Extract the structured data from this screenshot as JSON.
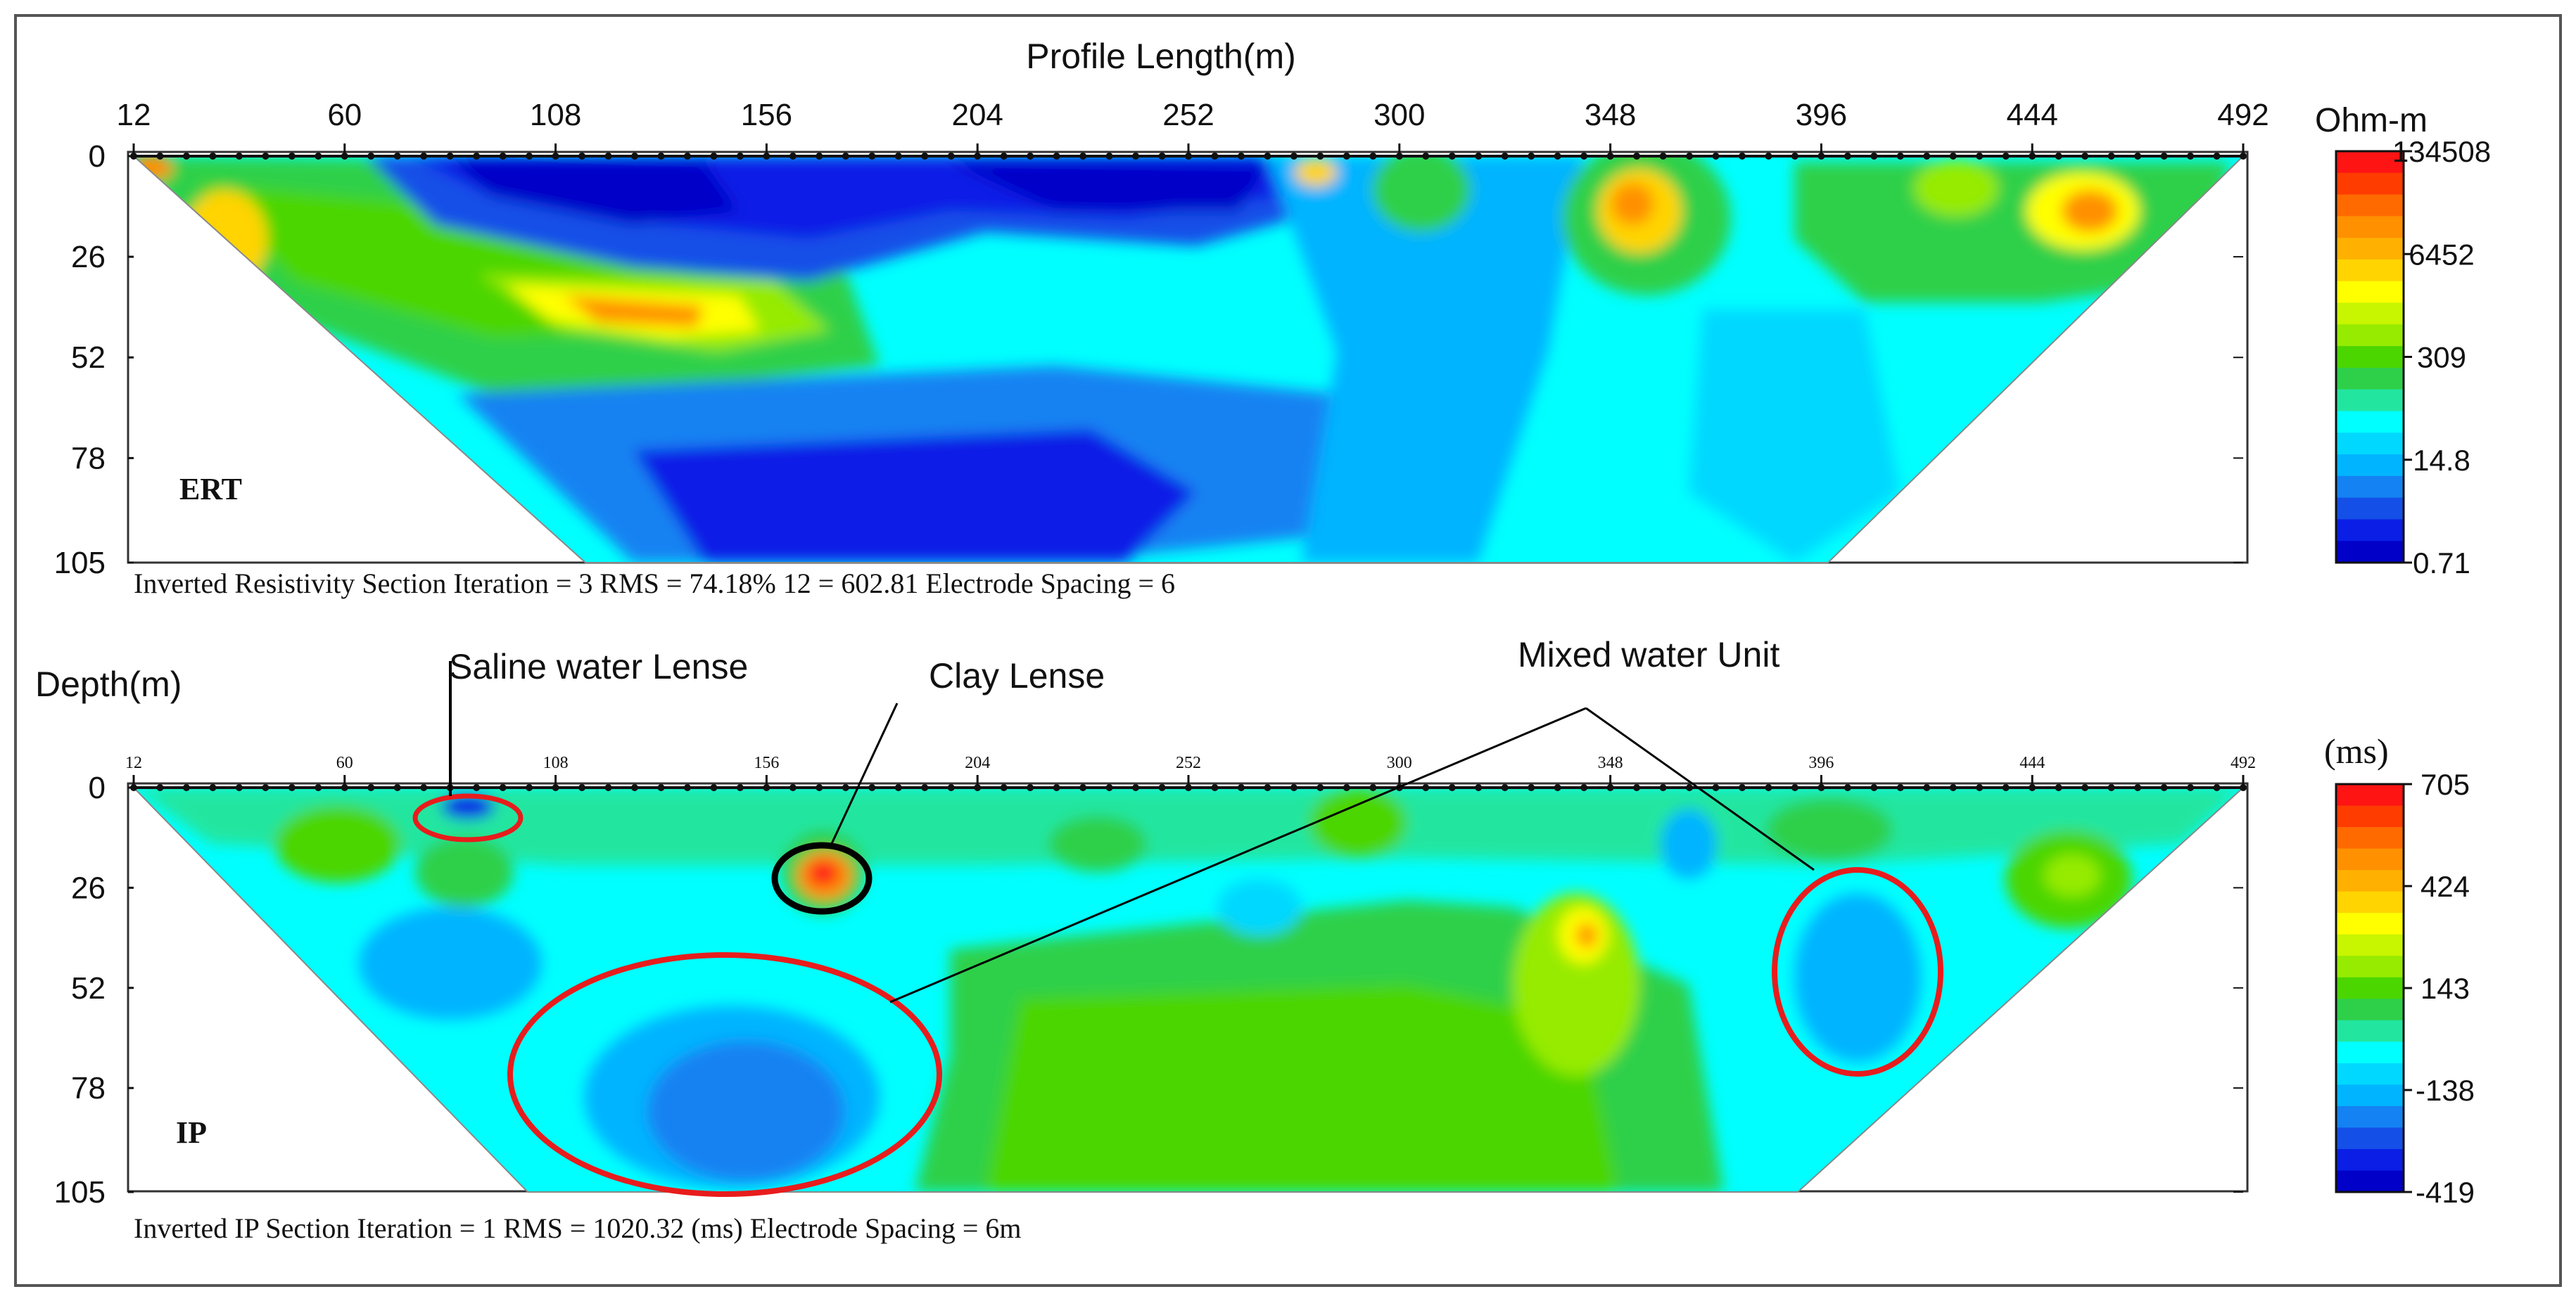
{
  "figure": {
    "x_axis_title": "Profile Length(m)",
    "y_axis_title": "Depth(m)"
  },
  "annotations": {
    "saline": "Saline water Lense",
    "clay": "Clay Lense",
    "mixed": "Mixed water Unit"
  },
  "chart_data": [
    {
      "type": "heatmap",
      "panel_label": "ERT",
      "caption": "Inverted Resistivity Section  Iteration = 3  RMS = 74.18%  12 = 602.81   Electrode Spacing = 6",
      "x_ticks": [
        "12",
        "60",
        "108",
        "156",
        "204",
        "252",
        "300",
        "348",
        "396",
        "444",
        "492"
      ],
      "y_ticks": [
        "0",
        "26",
        "52",
        "78",
        "105"
      ],
      "xlim": [
        12,
        492
      ],
      "ylim": [
        0,
        105
      ],
      "colorbar": {
        "title": "Ohm-m",
        "labels": [
          "134508",
          "6452",
          "309",
          "14.8",
          "0.71"
        ],
        "colors": [
          "#ff1414",
          "#ff3c00",
          "#ff6a00",
          "#ff9000",
          "#ffb000",
          "#ffd400",
          "#ffff00",
          "#c8f500",
          "#96eb00",
          "#4cd600",
          "#2ed04a",
          "#22e6a0",
          "#00ffff",
          "#00d8ff",
          "#00b4ff",
          "#1482f2",
          "#1450e8",
          "#0a1ee6",
          "#0000c8"
        ]
      },
      "anomalies": [
        {
          "kind": "high",
          "x": 30,
          "z": 24
        },
        {
          "kind": "low",
          "x": 120,
          "z": 10
        },
        {
          "kind": "low",
          "x": 165,
          "z": 12
        },
        {
          "kind": "low",
          "x": 200,
          "z": 9
        },
        {
          "kind": "low",
          "x": 240,
          "z": 12
        },
        {
          "kind": "high",
          "x": 130,
          "z": 38
        },
        {
          "kind": "low",
          "x": 180,
          "z": 88
        },
        {
          "kind": "mid",
          "x": 308,
          "z": 8
        },
        {
          "kind": "high",
          "x": 358,
          "z": 16
        },
        {
          "kind": "high",
          "x": 430,
          "z": 8
        },
        {
          "kind": "high",
          "x": 465,
          "z": 14
        }
      ]
    },
    {
      "type": "heatmap",
      "panel_label": "IP",
      "caption": "Inverted IP Section   Iteration = 1 RMS = 1020.32 (ms)   Electrode Spacing = 6m",
      "x_ticks": [
        "12",
        "60",
        "108",
        "156",
        "204",
        "252",
        "300",
        "348",
        "396",
        "444",
        "492"
      ],
      "y_ticks": [
        "0",
        "26",
        "52",
        "78",
        "105"
      ],
      "xlim": [
        12,
        492
      ],
      "ylim": [
        0,
        105
      ],
      "colorbar": {
        "title": "(ms)",
        "labels": [
          "705",
          "424",
          "143",
          "-138",
          "-419"
        ],
        "colors": [
          "#ff1414",
          "#ff3c00",
          "#ff6a00",
          "#ff9000",
          "#ffb000",
          "#ffd400",
          "#ffff00",
          "#c8f500",
          "#96eb00",
          "#4cd600",
          "#2ed04a",
          "#22e6a0",
          "#00ffff",
          "#00d8ff",
          "#00b4ff",
          "#1482f2",
          "#1450e8",
          "#0a1ee6",
          "#0000c8"
        ]
      },
      "anomalies": [
        {
          "kind": "low",
          "x": 90,
          "z": 6
        },
        {
          "kind": "high",
          "x": 177,
          "z": 24
        },
        {
          "kind": "low",
          "x": 160,
          "z": 80
        },
        {
          "kind": "low",
          "x": 410,
          "z": 50
        },
        {
          "kind": "high",
          "x": 349,
          "z": 42
        }
      ]
    }
  ]
}
